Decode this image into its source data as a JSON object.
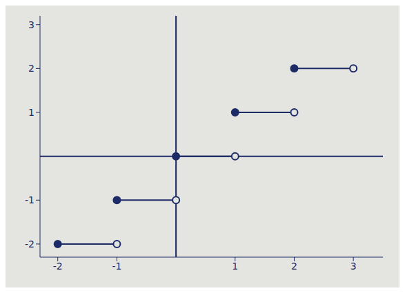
{
  "chart_data": {
    "type": "step",
    "color": "#1c2b66",
    "marker": "closed-open",
    "grid": false,
    "xlim": [
      -2.3,
      3.5
    ],
    "xticks": [
      -2,
      -1,
      1,
      2,
      3
    ],
    "ylim": [
      -2.3,
      3.2
    ],
    "yticks": [
      -2,
      -1,
      1,
      2,
      3
    ],
    "segments": [
      {
        "x": [
          -2,
          -1
        ],
        "values": [
          -2,
          -2
        ]
      },
      {
        "x": [
          -1,
          0
        ],
        "values": [
          -1,
          -1
        ]
      },
      {
        "x": [
          0,
          1
        ],
        "values": [
          0,
          0
        ]
      },
      {
        "x": [
          1,
          2
        ],
        "values": [
          1,
          1
        ]
      },
      {
        "x": [
          2,
          3
        ],
        "values": [
          2,
          2
        ]
      }
    ]
  }
}
